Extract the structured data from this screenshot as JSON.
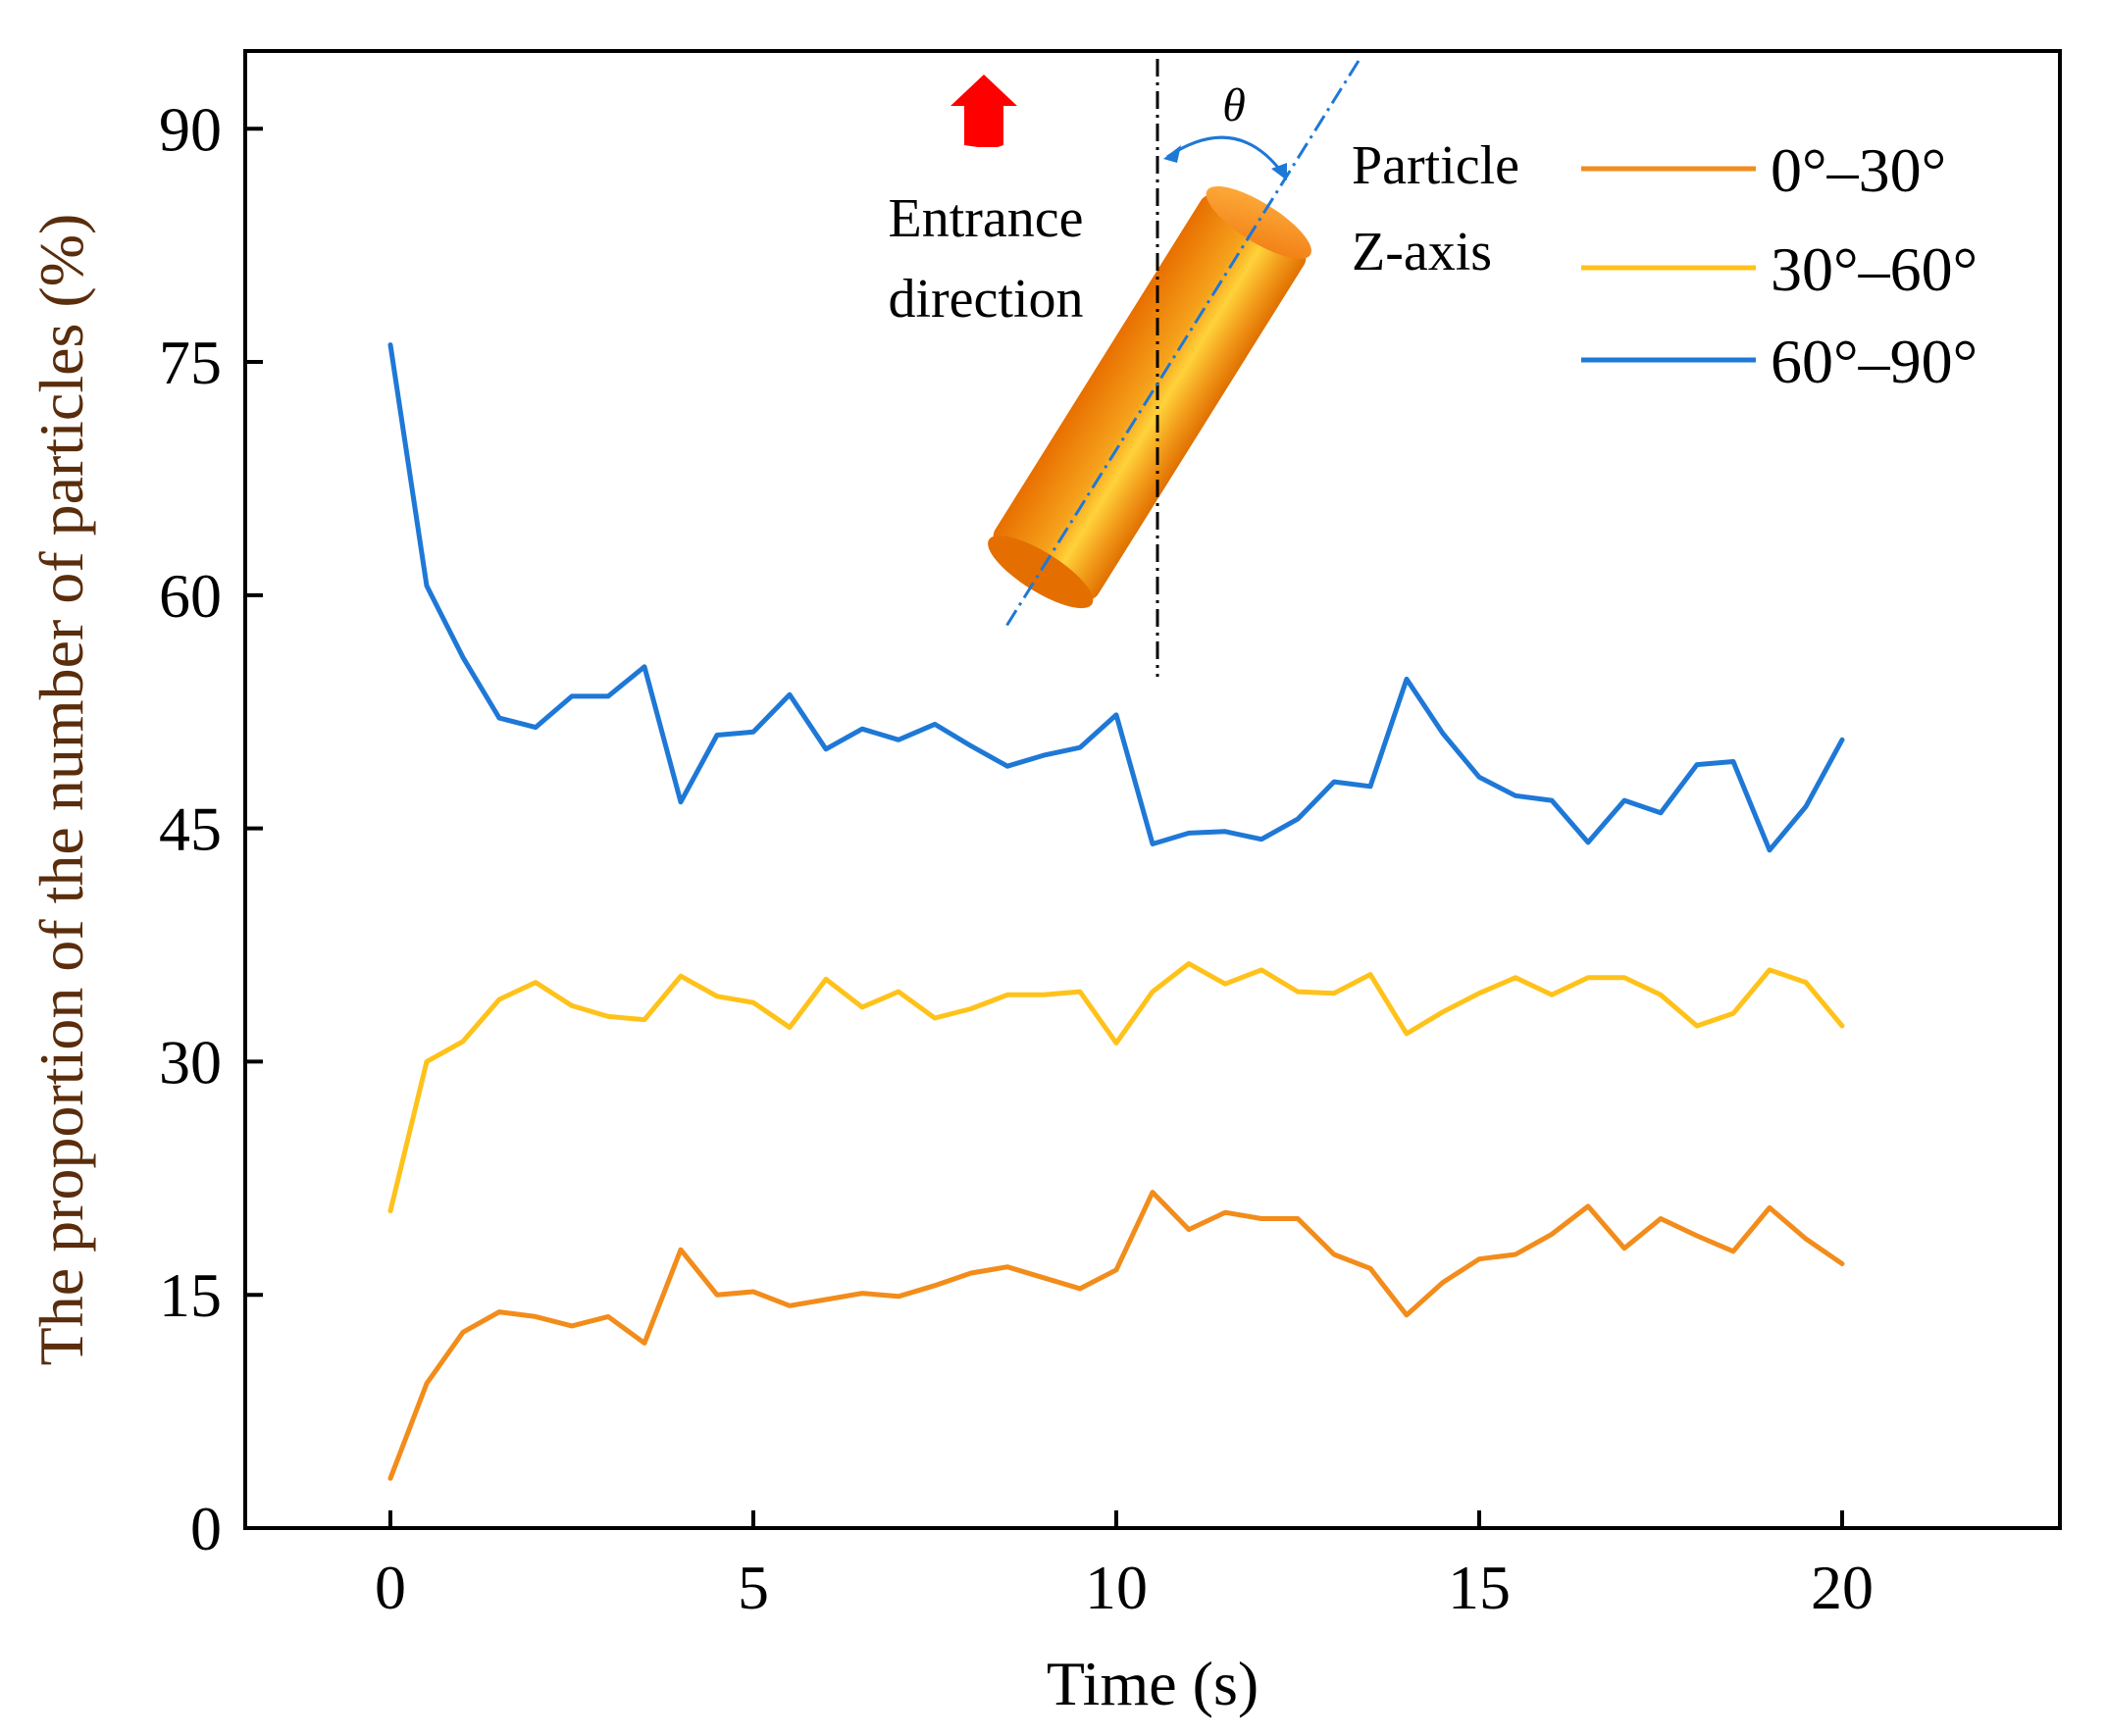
{
  "chart_data": {
    "type": "line",
    "title": "",
    "xlabel": "Time (s)",
    "ylabel": "The proportion of the number of particles (%)",
    "xlim": [
      -2,
      23
    ],
    "ylim": [
      0,
      95
    ],
    "xticks": [
      0,
      5,
      10,
      15,
      20
    ],
    "yticks": [
      0,
      15,
      30,
      45,
      60,
      75,
      90
    ],
    "grid": false,
    "legend_position": "top-right",
    "x": [
      0,
      0.5,
      1,
      1.5,
      2,
      2.5,
      3,
      3.5,
      4,
      4.5,
      5,
      5.5,
      6,
      6.5,
      7,
      7.5,
      8,
      8.5,
      9,
      9.5,
      10,
      10.5,
      11,
      11.5,
      12,
      12.5,
      13,
      13.5,
      14,
      14.5,
      15,
      15.5,
      16,
      16.5,
      17,
      17.5,
      18,
      18.5,
      19,
      19.5,
      20
    ],
    "series": [
      {
        "name": "0°–30°",
        "color": "#F28C1B",
        "values": [
          3.2,
          9.3,
          12.6,
          13.9,
          13.6,
          13.0,
          13.6,
          11.9,
          17.9,
          15.0,
          15.2,
          14.3,
          14.7,
          15.1,
          14.9,
          15.6,
          16.4,
          16.8,
          16.1,
          15.4,
          16.6,
          21.6,
          19.2,
          20.3,
          19.9,
          19.9,
          17.6,
          16.7,
          13.7,
          15.8,
          17.3,
          17.6,
          18.9,
          20.7,
          18.0,
          19.9,
          18.8,
          17.8,
          20.6,
          18.6,
          17.0
        ]
      },
      {
        "name": "30°–60°",
        "color": "#FFC21A",
        "values": [
          20.4,
          30.0,
          31.3,
          34.0,
          35.1,
          33.6,
          32.9,
          32.7,
          35.5,
          34.2,
          33.8,
          32.2,
          35.3,
          33.5,
          34.5,
          32.8,
          33.4,
          34.3,
          34.3,
          34.5,
          31.2,
          34.5,
          36.3,
          35.0,
          35.9,
          34.5,
          34.4,
          35.6,
          31.8,
          33.2,
          34.4,
          35.4,
          34.3,
          35.4,
          35.4,
          34.3,
          32.3,
          33.1,
          35.9,
          35.1,
          32.3
        ]
      },
      {
        "name": "60°–90°",
        "color": "#1E78D6",
        "values": [
          76.1,
          60.6,
          56.0,
          52.1,
          51.5,
          53.5,
          53.5,
          55.4,
          46.7,
          51.0,
          51.2,
          53.6,
          50.1,
          51.4,
          50.7,
          51.7,
          50.3,
          49.0,
          49.7,
          50.2,
          52.3,
          44.0,
          44.7,
          44.8,
          44.3,
          45.6,
          48.0,
          47.7,
          54.6,
          51.1,
          48.3,
          47.1,
          46.8,
          44.1,
          46.8,
          46.0,
          49.1,
          49.3,
          43.6,
          46.4,
          50.7
        ]
      }
    ],
    "annotations": {
      "entrance_label_line1": "Entrance",
      "entrance_label_line2": "direction",
      "particle_label_line1": "Particle",
      "particle_label_line2": "Z-axis",
      "angle_symbol": "θ",
      "arrow_color": "#FF0000",
      "cylinder_color": "#F28C1B"
    }
  }
}
